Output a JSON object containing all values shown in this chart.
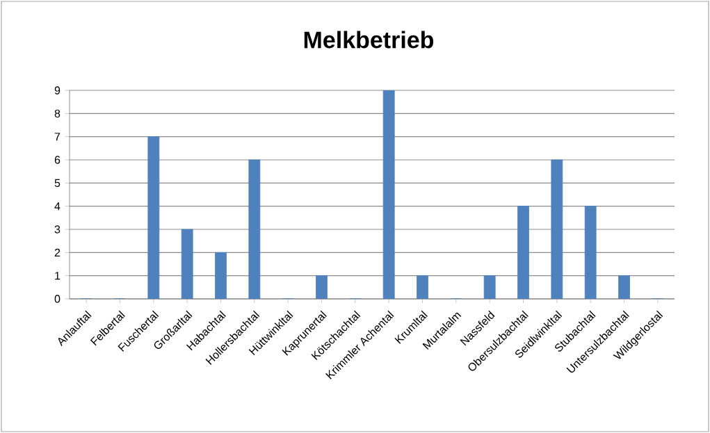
{
  "chart_data": {
    "type": "bar",
    "title": "Melkbetrieb",
    "categories": [
      "Anlauftal",
      "Felbertal",
      "Fuschertal",
      "Großarltal",
      "Habachtal",
      "Hollersbachtal",
      "Hüttwinkltal",
      "Kaprunertal",
      "Kötschachtal",
      "Krimmler Achental",
      "Krumltal",
      "Murtalalm",
      "Nassfeld",
      "Obersulzbachtal",
      "Seidlwinkltal",
      "Stubachtal",
      "Untersulzbachtal",
      "Wildgerlostal"
    ],
    "values": [
      0,
      0,
      7,
      3,
      2,
      6,
      0,
      1,
      0,
      9,
      1,
      0,
      1,
      4,
      6,
      4,
      1,
      0
    ],
    "color": "#4f81bd",
    "ylim": [
      0,
      9
    ],
    "yticks": [
      0,
      1,
      2,
      3,
      4,
      5,
      6,
      7,
      8,
      9
    ],
    "grid": "y"
  }
}
